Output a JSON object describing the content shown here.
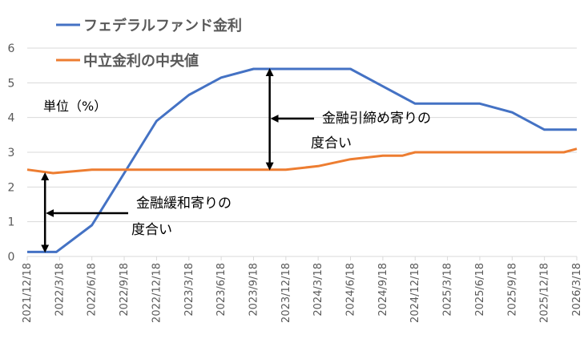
{
  "chart_data": {
    "type": "line",
    "title": "",
    "xlabel": "",
    "ylabel": "",
    "unit_note": "単位（%）",
    "ylim": [
      0,
      6
    ],
    "yticks": [
      0,
      1,
      2,
      3,
      4,
      5,
      6
    ],
    "grid": true,
    "legend_position": "top-left",
    "categories": [
      "2021/12/18",
      "2022/3/18",
      "2022/6/18",
      "2022/9/18",
      "2022/12/18",
      "2023/3/18",
      "2023/6/18",
      "2023/9/18",
      "2023/12/18",
      "2024/3/18",
      "2024/6/18",
      "2024/9/18",
      "2024/12/18",
      "2025/3/18",
      "2025/6/18",
      "2025/9/18",
      "2025/12/18",
      "2026/3/18"
    ],
    "series": [
      {
        "name": "フェデラルファンド金利",
        "color": "#4472C4",
        "points": [
          [
            0,
            0.13
          ],
          [
            0.9,
            0.13
          ],
          [
            2.0,
            0.9
          ],
          [
            3.0,
            2.4
          ],
          [
            4.0,
            3.9
          ],
          [
            5.0,
            4.65
          ],
          [
            6.0,
            5.15
          ],
          [
            7.0,
            5.4
          ],
          [
            8.0,
            5.4
          ],
          [
            9.0,
            5.4
          ],
          [
            10.0,
            5.4
          ],
          [
            11.0,
            4.9
          ],
          [
            12.0,
            4.4
          ],
          [
            13.0,
            4.4
          ],
          [
            14.0,
            4.4
          ],
          [
            15.0,
            4.15
          ],
          [
            16.0,
            3.65
          ],
          [
            17.0,
            3.65
          ]
        ]
      },
      {
        "name": "中立金利の中央値",
        "color": "#ED7D31",
        "points": [
          [
            0,
            2.5
          ],
          [
            0.8,
            2.4
          ],
          [
            2.0,
            2.5
          ],
          [
            3.0,
            2.5
          ],
          [
            4.0,
            2.5
          ],
          [
            5.0,
            2.5
          ],
          [
            6.0,
            2.5
          ],
          [
            7.0,
            2.5
          ],
          [
            8.0,
            2.5
          ],
          [
            9.0,
            2.6
          ],
          [
            10.0,
            2.8
          ],
          [
            11.0,
            2.9
          ],
          [
            11.6,
            2.9
          ],
          [
            12.0,
            3.0
          ],
          [
            13.0,
            3.0
          ],
          [
            14.0,
            3.0
          ],
          [
            15.0,
            3.0
          ],
          [
            16.0,
            3.0
          ],
          [
            16.6,
            3.0
          ],
          [
            17.0,
            3.1
          ]
        ]
      }
    ],
    "annotations": [
      {
        "id": "tightening",
        "lines": [
          "金融引締め寄りの",
          "度合い"
        ],
        "x": 7.5,
        "y_from": 2.5,
        "y_to": 5.4
      },
      {
        "id": "easing",
        "lines": [
          "金融緩和寄りの",
          "度合い"
        ],
        "x": 0.55,
        "y_from": 0.13,
        "y_to": 2.4
      }
    ]
  }
}
